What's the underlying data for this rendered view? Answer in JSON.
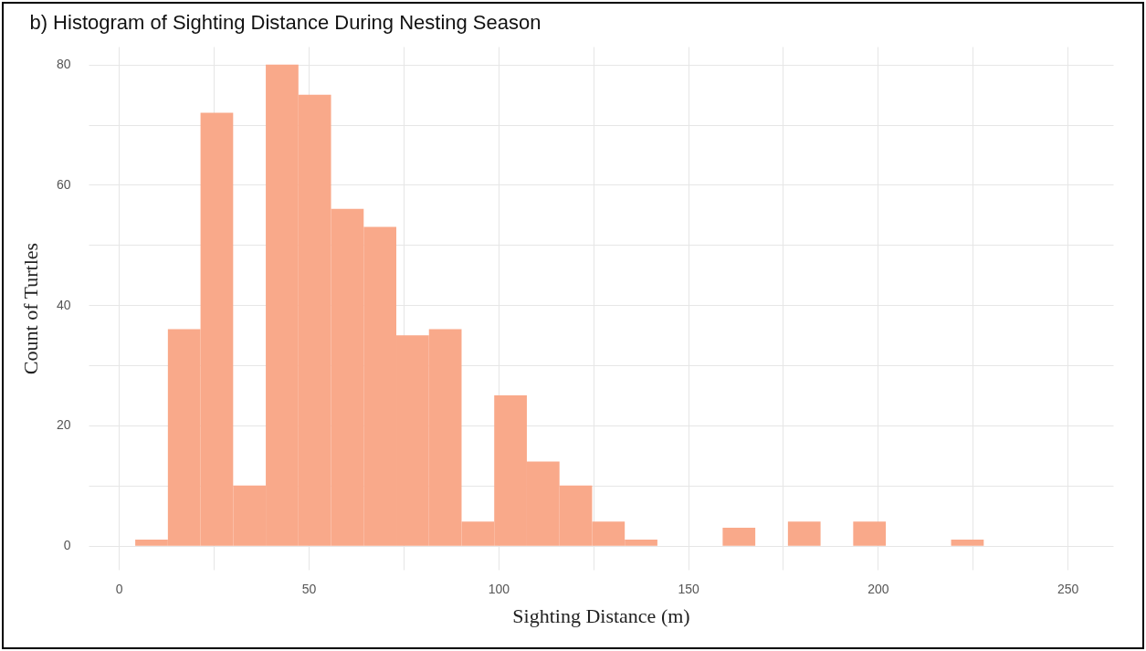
{
  "chart_data": {
    "type": "histogram",
    "title": "b) Histogram of Sighting Distance During Nesting Season",
    "xlabel": "Sighting Distance (m)",
    "ylabel": "Count of Turtles",
    "bins": [
      4.3,
      12.9,
      21.5,
      30.1,
      38.7,
      47.3,
      55.9,
      64.5,
      73.1,
      81.7,
      90.3,
      98.9,
      107.5,
      116.1,
      124.7,
      133.3,
      141.9,
      150.5,
      159.1,
      167.7,
      176.3,
      184.9,
      193.5,
      202.1,
      210.7,
      219.3,
      227.9
    ],
    "values": [
      1,
      36,
      72,
      10,
      80,
      75,
      56,
      53,
      35,
      36,
      4,
      25,
      14,
      10,
      4,
      1,
      0,
      0,
      3,
      0,
      4,
      0,
      4,
      0,
      0,
      1
    ],
    "color": "#f9a98a",
    "xlim": [
      -8,
      262
    ],
    "xticks": [
      0,
      {
        "value": 25,
        "label": null
      },
      50,
      {
        "value": 75,
        "label": null
      },
      100,
      {
        "value": 125,
        "label": null
      },
      150,
      {
        "value": 175,
        "label": null
      },
      200,
      {
        "value": 225,
        "label": null
      },
      250
    ],
    "ylim": [
      -4,
      83
    ],
    "yticks": [
      0,
      {
        "value": 10,
        "label": null
      },
      20,
      {
        "value": 30,
        "label": null
      },
      40,
      {
        "value": 50,
        "label": null
      },
      60,
      {
        "value": 70,
        "label": null
      },
      80
    ],
    "grid": true
  }
}
